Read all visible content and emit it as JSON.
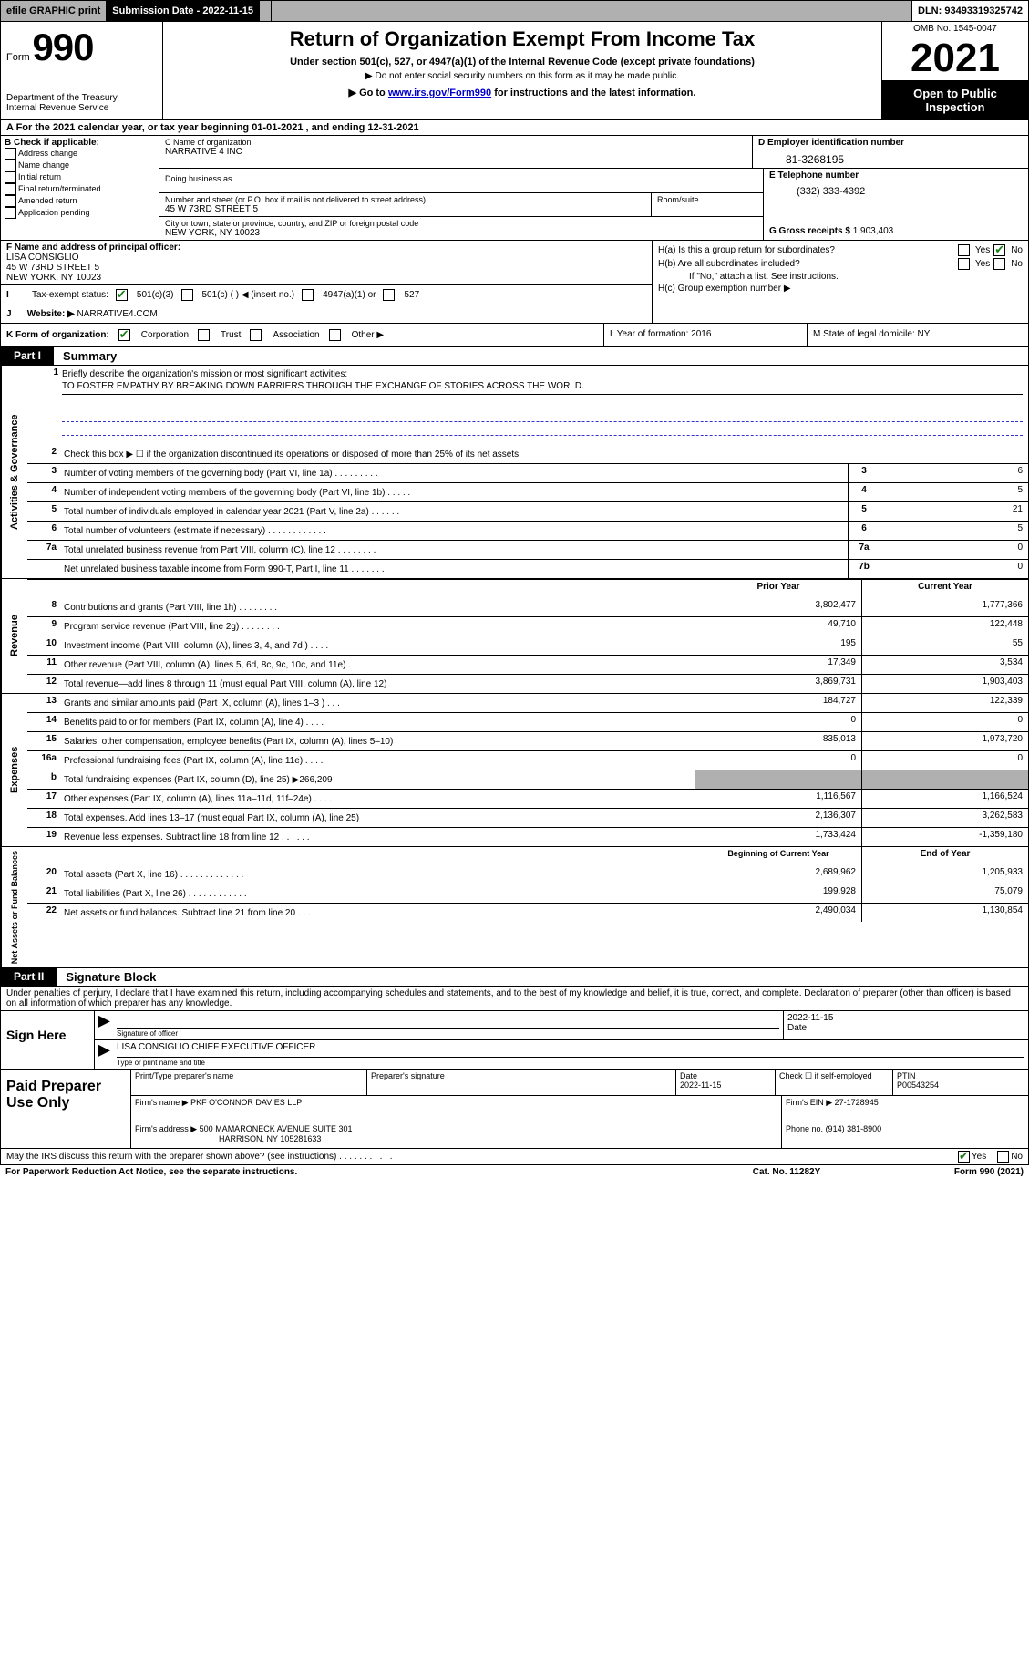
{
  "top": {
    "efile": "efile GRAPHIC print",
    "submission_label": "Submission Date - 2022-11-15",
    "dln": "DLN: 93493319325742"
  },
  "header": {
    "form_word": "Form",
    "form_num": "990",
    "dept": "Department of the Treasury\nInternal Revenue Service",
    "title": "Return of Organization Exempt From Income Tax",
    "sub": "Under section 501(c), 527, or 4947(a)(1) of the Internal Revenue Code (except private foundations)",
    "sub2": "▶ Do not enter social security numbers on this form as it may be made public.",
    "sub3_pre": "▶ Go to ",
    "sub3_link": "www.irs.gov/Form990",
    "sub3_post": " for instructions and the latest information.",
    "omb": "OMB No. 1545-0047",
    "year": "2021",
    "open": "Open to Public Inspection"
  },
  "rowA": "A For the 2021 calendar year, or tax year beginning 01-01-2021   , and ending 12-31-2021",
  "B": {
    "hdr": "B Check if applicable:",
    "items": [
      "Address change",
      "Name change",
      "Initial return",
      "Final return/terminated",
      "Amended return",
      "Application pending"
    ]
  },
  "C": {
    "name_lbl": "C Name of organization",
    "name": "NARRATIVE 4 INC",
    "dba_lbl": "Doing business as",
    "street_lbl": "Number and street (or P.O. box if mail is not delivered to street address)",
    "street": "45 W 73RD STREET 5",
    "room_lbl": "Room/suite",
    "city_lbl": "City or town, state or province, country, and ZIP or foreign postal code",
    "city": "NEW YORK, NY  10023"
  },
  "D": {
    "lbl": "D Employer identification number",
    "val": "81-3268195"
  },
  "E": {
    "lbl": "E Telephone number",
    "val": "(332) 333-4392"
  },
  "G": {
    "lbl": "G Gross receipts $",
    "val": "1,903,403"
  },
  "F": {
    "lbl": "F Name and address of principal officer:",
    "l1": "LISA CONSIGLIO",
    "l2": "45 W 73RD STREET 5",
    "l3": "NEW YORK, NY  10023"
  },
  "H": {
    "a": "H(a)  Is this a group return for subordinates?",
    "b": "H(b)  Are all subordinates included?",
    "bnote": "If \"No,\" attach a list. See instructions.",
    "c": "H(c)  Group exemption number ▶",
    "yes": "Yes",
    "no": "No"
  },
  "I": {
    "lbl": "Tax-exempt status:",
    "o1": "501(c)(3)",
    "o2": "501(c) (  ) ◀ (insert no.)",
    "o3": "4947(a)(1) or",
    "o4": "527"
  },
  "J": {
    "lbl": "Website: ▶",
    "val": "NARRATIVE4.COM"
  },
  "K": {
    "lbl": "K Form of organization:",
    "o1": "Corporation",
    "o2": "Trust",
    "o3": "Association",
    "o4": "Other ▶"
  },
  "L": {
    "txt": "L Year of formation: 2016"
  },
  "M": {
    "txt": "M State of legal domicile: NY"
  },
  "part1": {
    "tag": "Part I",
    "txt": "Summary"
  },
  "vlabels": {
    "gov": "Activities & Governance",
    "rev": "Revenue",
    "exp": "Expenses",
    "net": "Net Assets or Fund Balances"
  },
  "mission": {
    "q": "Briefly describe the organization's mission or most significant activities:",
    "a": "TO FOSTER EMPATHY BY BREAKING DOWN BARRIERS THROUGH THE EXCHANGE OF STORIES ACROSS THE WORLD."
  },
  "lines_gov": [
    {
      "n": "2",
      "d": "Check this box ▶ ☐  if the organization discontinued its operations or disposed of more than 25% of its net assets."
    },
    {
      "n": "3",
      "d": "Number of voting members of the governing body (Part VI, line 1a)   .    .    .    .    .    .    .    .    .",
      "bn": "3",
      "bv": "6"
    },
    {
      "n": "4",
      "d": "Number of independent voting members of the governing body (Part VI, line 1b)    .    .    .    .    .",
      "bn": "4",
      "bv": "5"
    },
    {
      "n": "5",
      "d": "Total number of individuals employed in calendar year 2021 (Part V, line 2a)    .    .    .    .    .    .",
      "bn": "5",
      "bv": "21"
    },
    {
      "n": "6",
      "d": "Total number of volunteers (estimate if necessary)    .    .    .    .    .    .    .    .    .    .    .    .",
      "bn": "6",
      "bv": "5"
    },
    {
      "n": "7a",
      "d": "Total unrelated business revenue from Part VIII, column (C), line 12   .    .    .    .    .    .    .    .",
      "bn": "7a",
      "bv": "0"
    },
    {
      "n": "",
      "d": "Net unrelated business taxable income from Form 990-T, Part I, line 11    .    .    .    .    .    .    .",
      "bn": "7b",
      "bv": "0"
    }
  ],
  "col_hdr": {
    "prior": "Prior Year",
    "curr": "Current Year"
  },
  "lines_rev": [
    {
      "n": "8",
      "d": "Contributions and grants (Part VIII, line 1h)    .    .    .    .    .    .    .    .",
      "p": "3,802,477",
      "c": "1,777,366"
    },
    {
      "n": "9",
      "d": "Program service revenue (Part VIII, line 2g)    .    .    .    .    .    .    .    .",
      "p": "49,710",
      "c": "122,448"
    },
    {
      "n": "10",
      "d": "Investment income (Part VIII, column (A), lines 3, 4, and 7d )    .    .    .    .",
      "p": "195",
      "c": "55"
    },
    {
      "n": "11",
      "d": "Other revenue (Part VIII, column (A), lines 5, 6d, 8c, 9c, 10c, and 11e)    .",
      "p": "17,349",
      "c": "3,534"
    },
    {
      "n": "12",
      "d": "Total revenue—add lines 8 through 11 (must equal Part VIII, column (A), line 12)",
      "p": "3,869,731",
      "c": "1,903,403"
    }
  ],
  "lines_exp": [
    {
      "n": "13",
      "d": "Grants and similar amounts paid (Part IX, column (A), lines 1–3 )    .    .    .",
      "p": "184,727",
      "c": "122,339"
    },
    {
      "n": "14",
      "d": "Benefits paid to or for members (Part IX, column (A), line 4)    .    .    .    .",
      "p": "0",
      "c": "0"
    },
    {
      "n": "15",
      "d": "Salaries, other compensation, employee benefits (Part IX, column (A), lines 5–10)",
      "p": "835,013",
      "c": "1,973,720"
    },
    {
      "n": "16a",
      "d": "Professional fundraising fees (Part IX, column (A), line 11e)    .    .    .    .",
      "p": "0",
      "c": "0"
    },
    {
      "n": "b",
      "d": "Total fundraising expenses (Part IX, column (D), line 25)  ▶266,209",
      "shaded": true
    },
    {
      "n": "17",
      "d": "Other expenses (Part IX, column (A), lines 11a–11d, 11f–24e)    .    .    .    .",
      "p": "1,116,567",
      "c": "1,166,524"
    },
    {
      "n": "18",
      "d": "Total expenses. Add lines 13–17 (must equal Part IX, column (A), line 25)",
      "p": "2,136,307",
      "c": "3,262,583"
    },
    {
      "n": "19",
      "d": "Revenue less expenses. Subtract line 18 from line 12   .    .    .    .    .    .",
      "p": "1,733,424",
      "c": "-1,359,180"
    }
  ],
  "col_hdr2": {
    "prior": "Beginning of Current Year",
    "curr": "End of Year"
  },
  "lines_net": [
    {
      "n": "20",
      "d": "Total assets (Part X, line 16)   .    .    .    .    .    .    .    .    .    .    .    .    .",
      "p": "2,689,962",
      "c": "1,205,933"
    },
    {
      "n": "21",
      "d": "Total liabilities (Part X, line 26)   .    .    .    .    .    .    .    .    .    .    .    .",
      "p": "199,928",
      "c": "75,079"
    },
    {
      "n": "22",
      "d": "Net assets or fund balances. Subtract line 21 from line 20    .    .    .    .",
      "p": "2,490,034",
      "c": "1,130,854"
    }
  ],
  "part2": {
    "tag": "Part II",
    "txt": "Signature Block"
  },
  "sig_intro": "Under penalties of perjury, I declare that I have examined this return, including accompanying schedules and statements, and to the best of my knowledge and belief, it is true, correct, and complete. Declaration of preparer (other than officer) is based on all information of which preparer has any knowledge.",
  "sign": {
    "here": "Sign Here",
    "sig_lbl": "Signature of officer",
    "date": "2022-11-15",
    "date_lbl": "Date",
    "name": "LISA CONSIGLIO  CHIEF EXECUTIVE OFFICER",
    "name_lbl": "Type or print name and title"
  },
  "prep": {
    "title": "Paid Preparer Use Only",
    "r1": {
      "c1": "Print/Type preparer's name",
      "c2": "Preparer's signature",
      "c3l": "Date",
      "c3v": "2022-11-15",
      "c4": "Check ☐ if self-employed",
      "c5l": "PTIN",
      "c5v": "P00543254"
    },
    "r2": {
      "lbl": "Firm's name    ▶",
      "val": "PKF O'CONNOR DAVIES LLP",
      "einl": "Firm's EIN ▶",
      "einv": "27-1728945"
    },
    "r3": {
      "lbl": "Firm's address ▶",
      "l1": "500 MAMARONECK AVENUE SUITE 301",
      "l2": "HARRISON, NY  105281633",
      "phl": "Phone no.",
      "phv": "(914) 381-8900"
    }
  },
  "footer": {
    "q": "May the IRS discuss this return with the preparer shown above? (see instructions)    .    .    .    .    .    .    .    .    .    .    .",
    "yes": "Yes",
    "no": "No"
  },
  "last": {
    "l": "For Paperwork Reduction Act Notice, see the separate instructions.",
    "m": "Cat. No. 11282Y",
    "r": "Form 990 (2021)"
  }
}
